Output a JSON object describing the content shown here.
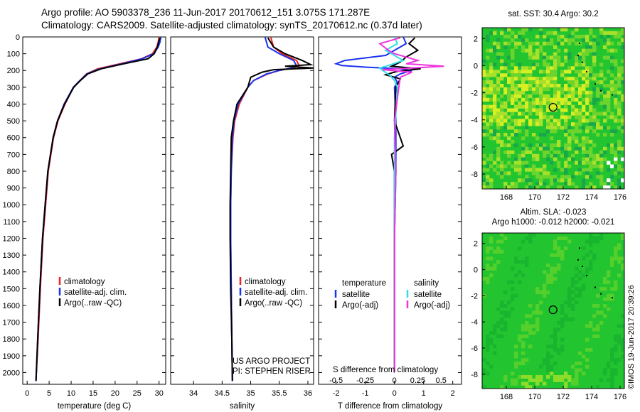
{
  "header": {
    "line1": "Argo profile: AO 5903378_236 11-Jun-2017 20170612_151 3.075S 171.287E",
    "line2": "Climatology: CARS2009. Satellite-adjusted climatology: synTS_20170612.nc (0.37d later)"
  },
  "stamp": "©IMOS 19-Jun-2017 20:39:26",
  "colors": {
    "climatology": "#ee2222",
    "satellite": "#1a33ee",
    "argo": "#000000",
    "sal_satellite": "#33dde8",
    "sal_argo": "#ee33dd",
    "map_green": "#22c430"
  },
  "chart_data": [
    {
      "id": "temperature",
      "type": "line",
      "xlabel": "temperature (deg C)",
      "xlim": [
        -1,
        31.5
      ],
      "xticks": [
        0,
        5,
        10,
        15,
        20,
        25,
        30
      ],
      "xtick_labels": [
        "0",
        "5",
        "10",
        "15",
        "20",
        "25",
        "30"
      ],
      "ylim": [
        2070,
        0
      ],
      "yticks": [
        0,
        100,
        200,
        300,
        400,
        500,
        600,
        700,
        800,
        900,
        1000,
        1100,
        1200,
        1300,
        1400,
        1500,
        1600,
        1700,
        1800,
        1900,
        2000
      ],
      "ytick_labels": [
        "0",
        "100",
        "200",
        "300",
        "400",
        "500",
        "600",
        "700",
        "800",
        "900",
        "1000",
        "1100",
        "1200",
        "1300",
        "1400",
        "1500",
        "1600",
        "1700",
        "1800",
        "1900",
        "2000"
      ],
      "legend": [
        "climatology",
        "satellite-adj. clim.",
        "Argo(..raw -QC)"
      ],
      "series": [
        {
          "name": "climatology",
          "color": "#ee2222",
          "depth": [
            0,
            30,
            60,
            100,
            130,
            160,
            190,
            220,
            260,
            300,
            400,
            500,
            600,
            800,
            1000,
            1200,
            1500,
            1800,
            2050
          ],
          "values": [
            30.0,
            29.8,
            29.5,
            28.5,
            26.0,
            21.0,
            16.0,
            13.5,
            12.0,
            10.5,
            8.6,
            7.0,
            6.0,
            4.8,
            4.2,
            3.6,
            3.0,
            2.5,
            2.0
          ]
        },
        {
          "name": "satellite-adj. clim.",
          "color": "#1a33ee",
          "depth": [
            0,
            30,
            60,
            100,
            130,
            160,
            190,
            220,
            260,
            300,
            400,
            500,
            600,
            800,
            1000,
            1200,
            1500,
            1800,
            2050
          ],
          "values": [
            30.4,
            30.2,
            29.8,
            28.8,
            26.2,
            21.5,
            16.5,
            13.6,
            12.0,
            10.5,
            8.4,
            6.9,
            5.9,
            4.7,
            4.1,
            3.5,
            2.9,
            2.4,
            2.0
          ]
        },
        {
          "name": "Argo(..raw -QC)",
          "color": "#000000",
          "depth": [
            5,
            30,
            60,
            100,
            130,
            160,
            190,
            220,
            260,
            300,
            400,
            500,
            600,
            800,
            1000,
            1200,
            1500,
            1800,
            2050
          ],
          "values": [
            30.2,
            29.9,
            29.6,
            28.9,
            27.5,
            22.0,
            16.8,
            13.8,
            12.1,
            10.6,
            8.5,
            6.9,
            5.9,
            4.7,
            4.1,
            3.5,
            2.9,
            2.4,
            2.0
          ]
        }
      ]
    },
    {
      "id": "salinity",
      "type": "line",
      "xlabel": "salinity",
      "xlim": [
        33.6,
        36.1
      ],
      "xticks": [
        34,
        34.5,
        35,
        35.5,
        36
      ],
      "xtick_labels": [
        "34",
        "34.5",
        "35",
        "35.5",
        "36"
      ],
      "ylim": [
        2070,
        0
      ],
      "legend": [
        "climatology",
        "satellite-adj. clim.",
        "Argo(..raw -QC)"
      ],
      "annotation": [
        "US ARGO PROJECT",
        "PI: STEPHEN RISER"
      ],
      "series": [
        {
          "name": "climatology",
          "color": "#ee2222",
          "depth": [
            0,
            60,
            100,
            140,
            170,
            185,
            200,
            220,
            260,
            300,
            400,
            500,
            600,
            800,
            1000,
            1200,
            1500,
            1800,
            2050
          ],
          "values": [
            35.35,
            35.4,
            35.55,
            35.8,
            35.85,
            35.75,
            35.5,
            35.3,
            35.05,
            34.95,
            34.8,
            34.72,
            34.69,
            34.66,
            34.65,
            34.65,
            34.66,
            34.67,
            34.68
          ]
        },
        {
          "name": "satellite-adj. clim.",
          "color": "#1a33ee",
          "depth": [
            0,
            60,
            100,
            140,
            170,
            185,
            200,
            220,
            260,
            300,
            400,
            500,
            600,
            800,
            1000,
            1200,
            1500,
            1800,
            2050
          ],
          "values": [
            35.25,
            35.3,
            35.5,
            35.75,
            35.8,
            35.72,
            35.5,
            35.28,
            35.05,
            34.95,
            34.78,
            34.71,
            34.68,
            34.66,
            34.65,
            34.65,
            34.66,
            34.67,
            34.68
          ]
        },
        {
          "name": "Argo(..raw -QC)",
          "color": "#000000",
          "depth": [
            5,
            60,
            100,
            140,
            165,
            175,
            185,
            195,
            210,
            240,
            300,
            400,
            500,
            600,
            800,
            1000,
            1200,
            1500,
            1800,
            2050
          ],
          "values": [
            35.3,
            35.4,
            35.6,
            35.9,
            36.05,
            35.6,
            36.1,
            35.4,
            35.2,
            35.0,
            34.95,
            34.76,
            34.7,
            34.66,
            34.65,
            34.64,
            34.64,
            34.65,
            34.67,
            34.68
          ]
        }
      ]
    },
    {
      "id": "difference",
      "type": "line",
      "xlabel": "T difference from climatology",
      "top_label": "S difference from climatology",
      "xlim": [
        -2.6,
        2.3
      ],
      "xticks": [
        -2,
        -1,
        0,
        1,
        2
      ],
      "xtick_labels": [
        "-2",
        "-1",
        "0",
        "1",
        "2"
      ],
      "sticks": [
        -2,
        -1,
        0,
        0.8,
        1.6
      ],
      "stick_labels": [
        "-0.5",
        "-0.25",
        "0",
        "0.25",
        "0.5"
      ],
      "ylim": [
        2070,
        0
      ],
      "legend_headings": [
        "temperature",
        "salinity"
      ],
      "legend": [
        "satellite",
        "Argo(-adj)",
        "satellite",
        "Argo(-adj)"
      ],
      "series": [
        {
          "name": "temperature satellite",
          "color": "#1a33ee",
          "depth": [
            0,
            40,
            80,
            110,
            140,
            160,
            170,
            180,
            190,
            200,
            220,
            240,
            270,
            300,
            500,
            800,
            1200,
            1600,
            2000
          ],
          "values": [
            0.3,
            0.4,
            0.0,
            -0.3,
            -1.7,
            -2.0,
            -1.8,
            -1.0,
            0.2,
            0.6,
            0.2,
            0.0,
            0.1,
            0.0,
            0.05,
            0.05,
            0.0,
            0.0,
            0.0
          ]
        },
        {
          "name": "temperature Argo(-adj)",
          "color": "#000000",
          "depth": [
            5,
            40,
            80,
            120,
            150,
            175,
            190,
            205,
            225,
            250,
            300,
            500,
            650,
            700,
            800,
            1200,
            1600,
            2000
          ],
          "values": [
            0.7,
            0.5,
            0.8,
            0.4,
            0.2,
            -0.1,
            0.9,
            0.1,
            -0.3,
            0.2,
            0.05,
            0.0,
            0.3,
            -0.1,
            0.0,
            0.0,
            0.0,
            0.0
          ]
        },
        {
          "name": "salinity satellite",
          "color": "#33dde8",
          "depth": [
            0,
            40,
            80,
            100,
            140,
            170,
            185,
            200,
            230,
            260,
            300,
            600,
            1000,
            1500,
            2000
          ],
          "values": [
            0.0,
            0.1,
            -0.3,
            -0.1,
            0.3,
            -0.2,
            -0.5,
            -0.4,
            -0.15,
            0.0,
            0.1,
            0.0,
            0.0,
            0.0,
            0.0
          ]
        },
        {
          "name": "salinity Argo(-adj)",
          "color": "#ee33dd",
          "depth": [
            5,
            40,
            80,
            100,
            140,
            160,
            175,
            185,
            195,
            210,
            240,
            300,
            500,
            800,
            1200,
            1600,
            2000
          ],
          "values": [
            0.2,
            -0.5,
            -0.2,
            0.0,
            0.8,
            0.4,
            1.7,
            0.6,
            -0.4,
            0.6,
            0.2,
            0.15,
            0.0,
            0.05,
            0.0,
            0.0,
            0.0
          ]
        }
      ]
    },
    {
      "id": "sst_map",
      "type": "heatmap",
      "title": "sat. SST: 30.4 Argo: 30.2",
      "xlim": [
        166.3,
        176.3
      ],
      "ylim": [
        -9.1,
        2.8
      ],
      "xticks": [
        168,
        170,
        172,
        174,
        176
      ],
      "xtick_labels": [
        "168",
        "170",
        "172",
        "174",
        "176"
      ],
      "yticks": [
        2,
        0,
        -2,
        -4,
        -6,
        -8
      ],
      "ytick_labels": [
        "2",
        "0",
        "-2",
        "-4",
        "-6",
        "-8"
      ],
      "marker": {
        "lon": 171.287,
        "lat": -3.075
      }
    },
    {
      "id": "sla_map",
      "type": "heatmap",
      "title": [
        "Altim. SLA: -0.023",
        "Argo h1000: -0.012 h2000: -0.021"
      ],
      "xlim": [
        166.3,
        176.3
      ],
      "ylim": [
        -9.1,
        2.8
      ],
      "xticks": [
        168,
        170,
        172,
        174,
        176
      ],
      "xtick_labels": [
        "168",
        "170",
        "172",
        "174",
        "176"
      ],
      "yticks": [
        2,
        0,
        -2,
        -4,
        -6,
        -8
      ],
      "ytick_labels": [
        "2",
        "0",
        "-2",
        "-4",
        "-6",
        "-8"
      ],
      "marker": {
        "lon": 171.287,
        "lat": -3.075
      }
    }
  ]
}
